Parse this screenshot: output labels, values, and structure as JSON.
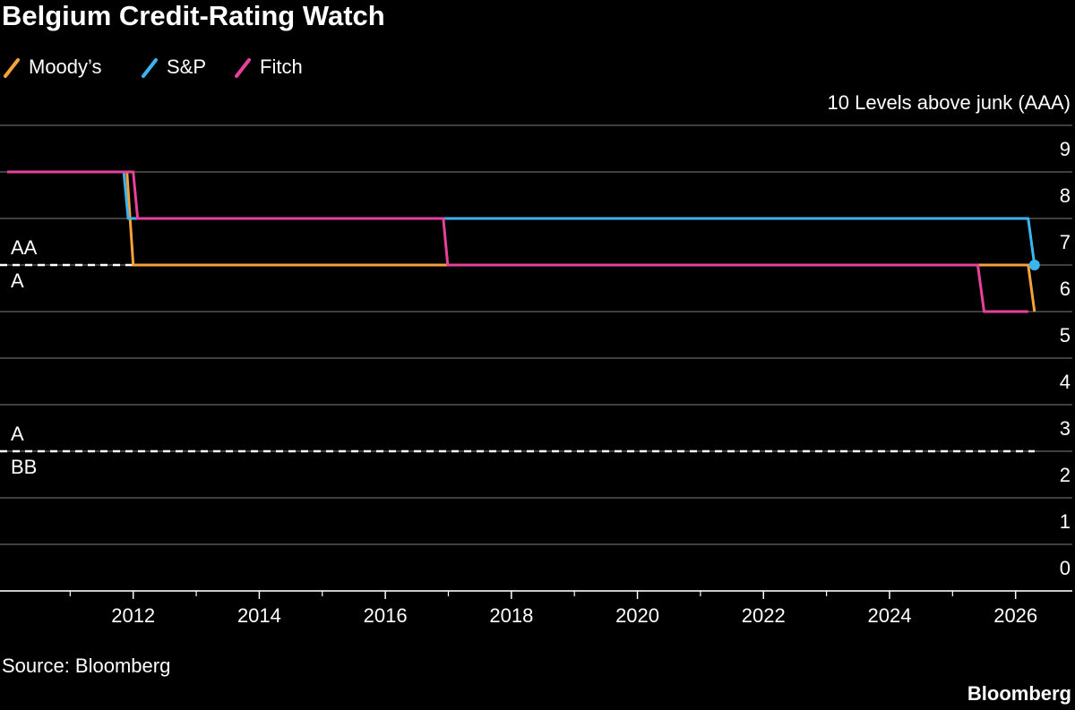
{
  "chart_data": {
    "type": "line",
    "title": "Belgium Credit-Rating Watch",
    "source": "Source: Bloomberg",
    "brand": "Bloomberg",
    "xlim": [
      2010,
      2026.9
    ],
    "xticks": [
      2012,
      2014,
      2016,
      2018,
      2020,
      2022,
      2024,
      2026
    ],
    "xminorticks": [
      2011,
      2013,
      2015,
      2017,
      2019,
      2021,
      2023,
      2025
    ],
    "ylim": [
      0,
      10
    ],
    "yticks": [
      0,
      1,
      2,
      3,
      4,
      5,
      6,
      7,
      8,
      9,
      {
        "value": 10,
        "label": "10 Levels above junk (AAA)"
      }
    ],
    "grid": true,
    "reference_lines": [
      {
        "value": 7,
        "above": "AA",
        "below": "A"
      },
      {
        "value": 3,
        "above": "A",
        "below": "BB"
      }
    ],
    "series": [
      {
        "name": "Moody’s",
        "color": "#f5a23a",
        "x": [
          2010,
          2011.9,
          2012.0,
          2026.2,
          2026.3
        ],
        "values": [
          9,
          9,
          7,
          7,
          6
        ]
      },
      {
        "name": "S&P",
        "color": "#3bb4f0",
        "end_marker": true,
        "x": [
          2010,
          2011.85,
          2011.92,
          2026.2,
          2026.3
        ],
        "values": [
          9,
          9,
          8,
          8,
          7
        ]
      },
      {
        "name": "Fitch",
        "color": "#e8419c",
        "x": [
          2010,
          2012.0,
          2012.07,
          2016.92,
          2016.99,
          2025.4,
          2025.5,
          2026.2
        ],
        "values": [
          9,
          9,
          8,
          8,
          7,
          7,
          6,
          6
        ]
      }
    ]
  }
}
